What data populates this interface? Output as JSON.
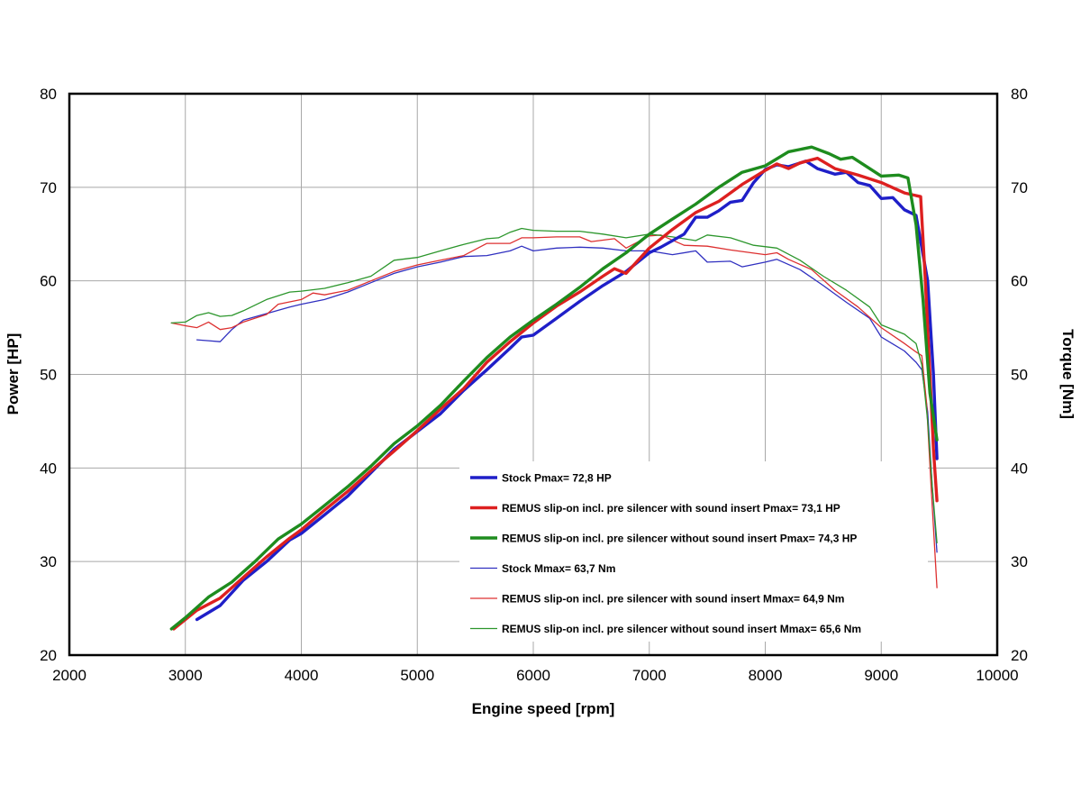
{
  "chart_data": {
    "type": "line",
    "title": "",
    "xlabel": "Engine speed [rpm]",
    "ylabel": "Power [HP]",
    "y2label": "Torque [Nm]",
    "xlim": [
      2000,
      10000
    ],
    "ylim": [
      20,
      80
    ],
    "y2lim": [
      20,
      80
    ],
    "x_ticks": [
      2000,
      3000,
      4000,
      5000,
      6000,
      7000,
      8000,
      9000,
      10000
    ],
    "y_ticks": [
      20,
      30,
      40,
      50,
      60,
      70,
      80
    ],
    "y2_ticks": [
      20,
      30,
      40,
      50,
      60,
      70,
      80
    ],
    "grid": true,
    "legend_position": "lower-center",
    "series": [
      {
        "name": "Stock Pmax= 72,8 HP",
        "axis": "left",
        "color": "#1f1fc8",
        "width": "thick",
        "points": [
          [
            3100,
            23.8
          ],
          [
            3300,
            25.3
          ],
          [
            3500,
            28
          ],
          [
            3700,
            30
          ],
          [
            3900,
            32.3
          ],
          [
            4000,
            33
          ],
          [
            4200,
            35
          ],
          [
            4400,
            37
          ],
          [
            4600,
            39.5
          ],
          [
            4800,
            42
          ],
          [
            5000,
            43.9
          ],
          [
            5200,
            45.8
          ],
          [
            5400,
            48.3
          ],
          [
            5600,
            50.5
          ],
          [
            5800,
            52.8
          ],
          [
            5900,
            54
          ],
          [
            6000,
            54.2
          ],
          [
            6200,
            56
          ],
          [
            6400,
            57.8
          ],
          [
            6600,
            59.5
          ],
          [
            6800,
            61
          ],
          [
            7000,
            63
          ],
          [
            7100,
            63.6
          ],
          [
            7300,
            65
          ],
          [
            7400,
            66.8
          ],
          [
            7500,
            66.8
          ],
          [
            7600,
            67.5
          ],
          [
            7700,
            68.4
          ],
          [
            7800,
            68.6
          ],
          [
            7900,
            70.5
          ],
          [
            8000,
            71.9
          ],
          [
            8100,
            72.4
          ],
          [
            8200,
            72.2
          ],
          [
            8350,
            72.8
          ],
          [
            8450,
            72
          ],
          [
            8600,
            71.4
          ],
          [
            8700,
            71.6
          ],
          [
            8800,
            70.5
          ],
          [
            8900,
            70.2
          ],
          [
            9000,
            68.8
          ],
          [
            9100,
            68.9
          ],
          [
            9200,
            67.6
          ],
          [
            9300,
            67
          ],
          [
            9400,
            60
          ],
          [
            9450,
            50
          ],
          [
            9480,
            41
          ]
        ]
      },
      {
        "name": "REMUS slip-on incl. pre silencer with sound insert Pmax=  73,1 HP",
        "axis": "left",
        "color": "#dd2020",
        "width": "thick",
        "points": [
          [
            2900,
            22.8
          ],
          [
            3100,
            24.8
          ],
          [
            3300,
            26.1
          ],
          [
            3500,
            28.3
          ],
          [
            3700,
            30.5
          ],
          [
            3900,
            32.5
          ],
          [
            4000,
            33.4
          ],
          [
            4200,
            35.5
          ],
          [
            4400,
            37.5
          ],
          [
            4600,
            39.7
          ],
          [
            4800,
            41.8
          ],
          [
            5000,
            44
          ],
          [
            5200,
            46.3
          ],
          [
            5400,
            48.5
          ],
          [
            5600,
            51.3
          ],
          [
            5800,
            53.5
          ],
          [
            6000,
            55.5
          ],
          [
            6200,
            57.3
          ],
          [
            6400,
            58.8
          ],
          [
            6600,
            60.5
          ],
          [
            6700,
            61.3
          ],
          [
            6800,
            60.8
          ],
          [
            7000,
            63.5
          ],
          [
            7200,
            65.5
          ],
          [
            7400,
            67.3
          ],
          [
            7600,
            68.5
          ],
          [
            7800,
            70.3
          ],
          [
            8000,
            71.8
          ],
          [
            8100,
            72.5
          ],
          [
            8200,
            72
          ],
          [
            8300,
            72.6
          ],
          [
            8450,
            73.1
          ],
          [
            8600,
            72
          ],
          [
            8800,
            71.3
          ],
          [
            9000,
            70.5
          ],
          [
            9200,
            69.4
          ],
          [
            9340,
            69
          ],
          [
            9380,
            60
          ],
          [
            9420,
            50
          ],
          [
            9450,
            42
          ],
          [
            9480,
            36.5
          ]
        ]
      },
      {
        "name": "REMUS slip-on incl. pre silencer without sound insert Pmax= 74,3 HP",
        "axis": "left",
        "color": "#1e8c1e",
        "width": "thick",
        "points": [
          [
            2880,
            22.8
          ],
          [
            3000,
            24
          ],
          [
            3200,
            26.2
          ],
          [
            3400,
            27.8
          ],
          [
            3600,
            30
          ],
          [
            3800,
            32.4
          ],
          [
            4000,
            34
          ],
          [
            4200,
            36
          ],
          [
            4400,
            38
          ],
          [
            4600,
            40.2
          ],
          [
            4800,
            42.6
          ],
          [
            5000,
            44.5
          ],
          [
            5200,
            46.7
          ],
          [
            5400,
            49.3
          ],
          [
            5600,
            51.8
          ],
          [
            5800,
            54
          ],
          [
            6000,
            55.8
          ],
          [
            6200,
            57.5
          ],
          [
            6400,
            59.3
          ],
          [
            6600,
            61.3
          ],
          [
            6800,
            63
          ],
          [
            7000,
            65
          ],
          [
            7200,
            66.6
          ],
          [
            7400,
            68.2
          ],
          [
            7600,
            70
          ],
          [
            7800,
            71.6
          ],
          [
            8000,
            72.3
          ],
          [
            8200,
            73.8
          ],
          [
            8400,
            74.3
          ],
          [
            8550,
            73.6
          ],
          [
            8650,
            73
          ],
          [
            8750,
            73.2
          ],
          [
            8900,
            72
          ],
          [
            9000,
            71.2
          ],
          [
            9150,
            71.3
          ],
          [
            9230,
            71
          ],
          [
            9300,
            66
          ],
          [
            9360,
            58
          ],
          [
            9420,
            48
          ],
          [
            9480,
            43
          ]
        ]
      },
      {
        "name": "Stock Mmax= 63,7 Nm",
        "axis": "right",
        "color": "#3030c0",
        "width": "thin",
        "points": [
          [
            3100,
            53.7
          ],
          [
            3200,
            53.6
          ],
          [
            3300,
            53.5
          ],
          [
            3400,
            54.8
          ],
          [
            3500,
            55.8
          ],
          [
            3700,
            56.5
          ],
          [
            3900,
            57.2
          ],
          [
            4000,
            57.5
          ],
          [
            4200,
            58
          ],
          [
            4400,
            58.8
          ],
          [
            4600,
            59.8
          ],
          [
            4800,
            60.8
          ],
          [
            5000,
            61.5
          ],
          [
            5200,
            62
          ],
          [
            5400,
            62.6
          ],
          [
            5600,
            62.7
          ],
          [
            5800,
            63.2
          ],
          [
            5900,
            63.7
          ],
          [
            6000,
            63.2
          ],
          [
            6200,
            63.5
          ],
          [
            6400,
            63.6
          ],
          [
            6600,
            63.5
          ],
          [
            6800,
            63.2
          ],
          [
            7000,
            63.2
          ],
          [
            7200,
            62.8
          ],
          [
            7400,
            63.2
          ],
          [
            7500,
            62
          ],
          [
            7700,
            62.1
          ],
          [
            7800,
            61.5
          ],
          [
            8000,
            62
          ],
          [
            8100,
            62.3
          ],
          [
            8300,
            61.2
          ],
          [
            8500,
            59.5
          ],
          [
            8700,
            57.7
          ],
          [
            8900,
            56
          ],
          [
            9000,
            54
          ],
          [
            9200,
            52.5
          ],
          [
            9300,
            51.3
          ],
          [
            9350,
            50.5
          ],
          [
            9400,
            46
          ],
          [
            9440,
            38
          ],
          [
            9480,
            31
          ]
        ]
      },
      {
        "name": "REMUS slip-on incl. pre silencer with sound insert Mmax= 64,9 Nm",
        "axis": "right",
        "color": "#dd3030",
        "width": "thin",
        "points": [
          [
            2880,
            55.5
          ],
          [
            3000,
            55.2
          ],
          [
            3100,
            55
          ],
          [
            3200,
            55.6
          ],
          [
            3300,
            54.8
          ],
          [
            3400,
            55
          ],
          [
            3500,
            55.6
          ],
          [
            3700,
            56.4
          ],
          [
            3800,
            57.5
          ],
          [
            4000,
            58
          ],
          [
            4100,
            58.7
          ],
          [
            4200,
            58.5
          ],
          [
            4400,
            59
          ],
          [
            4600,
            60
          ],
          [
            4800,
            61
          ],
          [
            5000,
            61.7
          ],
          [
            5200,
            62.2
          ],
          [
            5400,
            62.7
          ],
          [
            5600,
            64
          ],
          [
            5800,
            64
          ],
          [
            5900,
            64.6
          ],
          [
            6000,
            64.6
          ],
          [
            6200,
            64.7
          ],
          [
            6400,
            64.7
          ],
          [
            6500,
            64.2
          ],
          [
            6700,
            64.5
          ],
          [
            6800,
            63.5
          ],
          [
            7000,
            64.8
          ],
          [
            7100,
            64.9
          ],
          [
            7300,
            63.8
          ],
          [
            7500,
            63.7
          ],
          [
            7700,
            63.3
          ],
          [
            8000,
            62.8
          ],
          [
            8100,
            63
          ],
          [
            8200,
            62.3
          ],
          [
            8400,
            61.2
          ],
          [
            8600,
            59
          ],
          [
            8800,
            57.2
          ],
          [
            9000,
            55
          ],
          [
            9200,
            53.3
          ],
          [
            9300,
            52.4
          ],
          [
            9350,
            52
          ],
          [
            9390,
            47
          ],
          [
            9430,
            38
          ],
          [
            9480,
            27.2
          ]
        ]
      },
      {
        "name": "REMUS slip-on incl. pre silencer without sound insert Mmax= 65,6 Nm",
        "axis": "right",
        "color": "#2c962c",
        "width": "thin",
        "points": [
          [
            2880,
            55.5
          ],
          [
            3000,
            55.6
          ],
          [
            3100,
            56.3
          ],
          [
            3200,
            56.6
          ],
          [
            3300,
            56.2
          ],
          [
            3400,
            56.3
          ],
          [
            3500,
            56.8
          ],
          [
            3700,
            58
          ],
          [
            3900,
            58.8
          ],
          [
            4000,
            58.9
          ],
          [
            4200,
            59.2
          ],
          [
            4400,
            59.8
          ],
          [
            4600,
            60.5
          ],
          [
            4800,
            62.2
          ],
          [
            5000,
            62.5
          ],
          [
            5200,
            63.2
          ],
          [
            5400,
            63.9
          ],
          [
            5600,
            64.5
          ],
          [
            5700,
            64.6
          ],
          [
            5800,
            65.2
          ],
          [
            5900,
            65.6
          ],
          [
            6000,
            65.4
          ],
          [
            6200,
            65.3
          ],
          [
            6400,
            65.3
          ],
          [
            6600,
            65
          ],
          [
            6800,
            64.6
          ],
          [
            7000,
            65
          ],
          [
            7200,
            64.7
          ],
          [
            7400,
            64.3
          ],
          [
            7500,
            64.9
          ],
          [
            7700,
            64.6
          ],
          [
            7900,
            63.8
          ],
          [
            8100,
            63.5
          ],
          [
            8300,
            62.2
          ],
          [
            8500,
            60.5
          ],
          [
            8700,
            59
          ],
          [
            8900,
            57.2
          ],
          [
            9000,
            55.3
          ],
          [
            9200,
            54.3
          ],
          [
            9300,
            53.3
          ],
          [
            9350,
            51
          ],
          [
            9400,
            45
          ],
          [
            9440,
            38
          ],
          [
            9480,
            32
          ]
        ]
      }
    ]
  }
}
